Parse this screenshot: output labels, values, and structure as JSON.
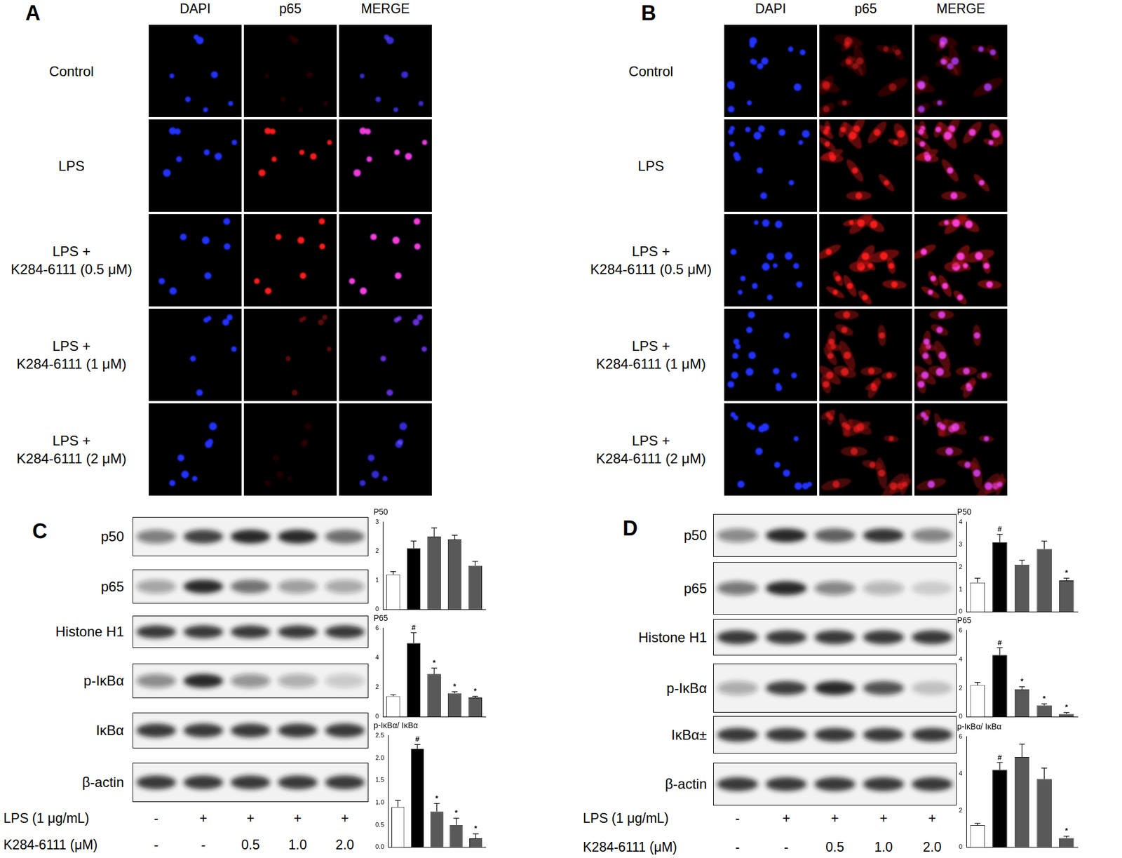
{
  "microscopy": [
    {
      "panel": "A",
      "columns": [
        "DAPI",
        "p65",
        "MERGE"
      ],
      "rows": [
        [
          "Control"
        ],
        [
          "LPS"
        ],
        [
          "LPS +",
          "K284-6111 (0.5 μM)"
        ],
        [
          "LPS +",
          "K284-6111 (1 μM)"
        ],
        [
          "LPS +",
          "K284-6111 (2 μM)"
        ]
      ]
    },
    {
      "panel": "B",
      "columns": [
        "DAPI",
        "p65",
        "MERGE"
      ],
      "rows": [
        [
          "Control"
        ],
        [
          "LPS"
        ],
        [
          "LPS +",
          "K284-6111 (0.5 μM)"
        ],
        [
          "LPS +",
          "K284-6111 (1 μM)"
        ],
        [
          "LPS +",
          "K284-6111 (2 μM)"
        ]
      ]
    }
  ],
  "blots": [
    {
      "panel": "C",
      "rows": [
        "p50",
        "p65",
        "Histone H1",
        "p-IκBα",
        "IκBα",
        "β-actin"
      ],
      "treatments": [
        {
          "label": "LPS (1 μg/mL)",
          "lanes": [
            "-",
            "+",
            "+",
            "+",
            "+"
          ]
        },
        {
          "label": "K284-6111 (μM)",
          "lanes": [
            "-",
            "-",
            "0.5",
            "1.0",
            "2.0"
          ]
        }
      ]
    },
    {
      "panel": "D",
      "rows": [
        "p50",
        "p65",
        "Histone H1",
        "p-IκBα",
        "IκBα±",
        "β-actin"
      ],
      "treatments": [
        {
          "label": "LPS (1 μg/mL)",
          "lanes": [
            "-",
            "+",
            "+",
            "+",
            "+"
          ]
        },
        {
          "label": "K284-6111 (μM)",
          "lanes": [
            "-",
            "-",
            "0.5",
            "1.0",
            "2.0"
          ]
        }
      ]
    }
  ],
  "chart_data": [
    {
      "type": "bar",
      "title": "P50",
      "categories": [
        null,
        null,
        null,
        null,
        null
      ],
      "values": [
        1.2,
        2.1,
        2.5,
        2.4,
        1.5
      ],
      "errors": [
        0.1,
        0.25,
        0.3,
        0.15,
        0.15
      ],
      "significance": [
        null,
        null,
        null,
        null,
        null
      ],
      "colors": [
        "#ffffff",
        "#000000",
        "#595959",
        "#595959",
        "#595959"
      ],
      "ylim": [
        0,
        3
      ],
      "yticks": [
        0,
        1,
        2,
        3
      ],
      "grid": false,
      "tick_labels": "y"
    },
    {
      "type": "bar",
      "title": "P65",
      "categories": [
        null,
        null,
        null,
        null,
        null
      ],
      "values": [
        1.4,
        5.0,
        2.9,
        1.6,
        1.3
      ],
      "errors": [
        0.1,
        0.7,
        0.4,
        0.1,
        0.1
      ],
      "significance": [
        null,
        "#",
        "*",
        "*",
        "*"
      ],
      "colors": [
        "#ffffff",
        "#000000",
        "#595959",
        "#595959",
        "#595959"
      ],
      "ylim": [
        0,
        6
      ],
      "yticks": [
        0,
        2,
        4,
        6
      ],
      "grid": false,
      "tick_labels": "y"
    },
    {
      "type": "bar",
      "title": "p-IκBα/ IκBα",
      "categories": [
        null,
        null,
        null,
        null,
        null
      ],
      "values": [
        0.9,
        2.2,
        0.8,
        0.5,
        0.2
      ],
      "errors": [
        0.15,
        0.1,
        0.18,
        0.15,
        0.1
      ],
      "significance": [
        null,
        "#",
        "*",
        "*",
        "*"
      ],
      "colors": [
        "#ffffff",
        "#000000",
        "#595959",
        "#595959",
        "#595959"
      ],
      "ylim": [
        0,
        2.5
      ],
      "yticks": [
        {
          "value": 0,
          "label": "0.0"
        },
        {
          "value": 0.5,
          "label": "0.5"
        },
        {
          "value": 1,
          "label": "1.0"
        },
        {
          "value": 1.5,
          "label": "1.5"
        },
        {
          "value": 2,
          "label": "2.0"
        },
        {
          "value": 2.5,
          "label": "2.5"
        }
      ],
      "grid": false,
      "tick_labels": "y"
    },
    {
      "type": "bar",
      "title": "P50",
      "categories": [
        null,
        null,
        null,
        null,
        null
      ],
      "values": [
        1.3,
        3.1,
        2.1,
        2.8,
        1.4
      ],
      "errors": [
        0.2,
        0.35,
        0.2,
        0.35,
        0.1
      ],
      "significance": [
        null,
        "#",
        null,
        null,
        "*"
      ],
      "colors": [
        "#ffffff",
        "#000000",
        "#595959",
        "#595959",
        "#595959"
      ],
      "ylim": [
        0,
        4
      ],
      "yticks": [
        0,
        1,
        2,
        3,
        4
      ],
      "grid": false,
      "tick_labels": "y"
    },
    {
      "type": "bar",
      "title": "P65",
      "categories": [
        null,
        null,
        null,
        null,
        null
      ],
      "values": [
        2.2,
        4.3,
        1.9,
        0.8,
        0.2
      ],
      "errors": [
        0.2,
        0.5,
        0.2,
        0.1,
        0.1
      ],
      "significance": [
        null,
        "#",
        "*",
        "*",
        "*"
      ],
      "colors": [
        "#ffffff",
        "#000000",
        "#595959",
        "#595959",
        "#595959"
      ],
      "ylim": [
        0,
        6
      ],
      "yticks": [
        0,
        2,
        4,
        6
      ],
      "grid": false,
      "tick_labels": "y"
    },
    {
      "type": "bar",
      "title": "p-IκBα/ IκBα",
      "categories": [
        null,
        null,
        null,
        null,
        null
      ],
      "values": [
        1.2,
        4.2,
        4.9,
        3.7,
        0.5
      ],
      "errors": [
        0.1,
        0.4,
        0.7,
        0.6,
        0.1
      ],
      "significance": [
        null,
        "#",
        null,
        null,
        "*"
      ],
      "colors": [
        "#ffffff",
        "#000000",
        "#595959",
        "#595959",
        "#595959"
      ],
      "ylim": [
        0,
        6
      ],
      "yticks": [
        0,
        2,
        4,
        6
      ],
      "grid": false,
      "tick_labels": "y"
    }
  ]
}
